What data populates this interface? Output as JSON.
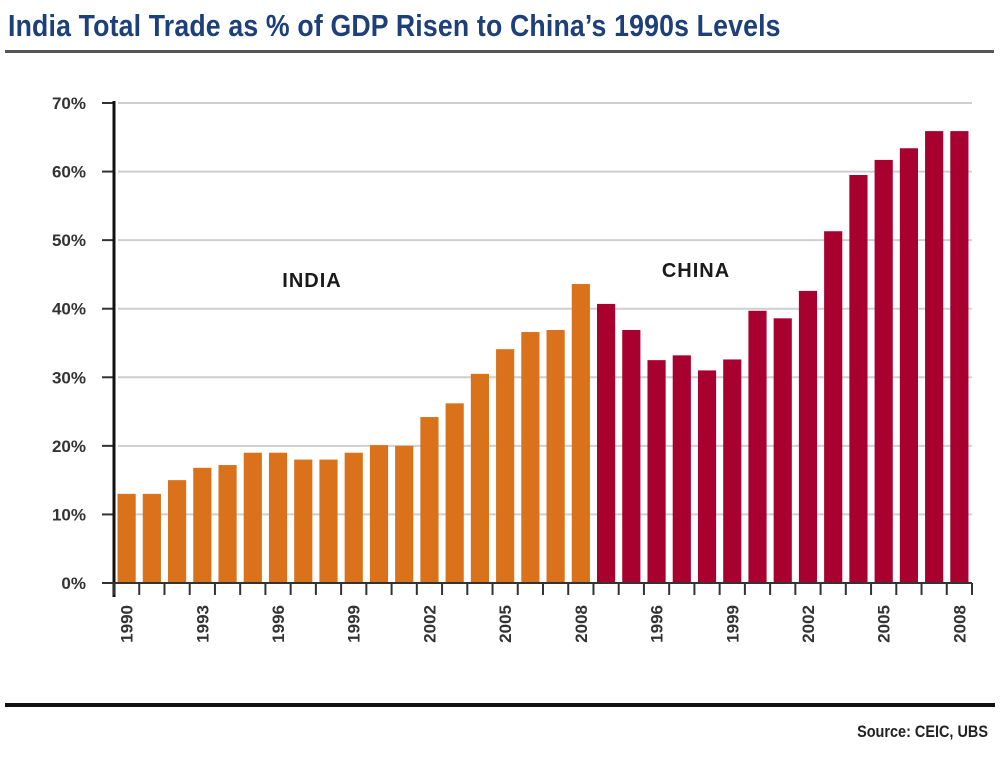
{
  "chart_data": {
    "type": "bar",
    "title": "India Total Trade as % of GDP Risen to China’s 1990s Levels",
    "xlabel": "",
    "ylabel": "",
    "ylim": [
      0,
      70
    ],
    "yticks": [
      "0%",
      "10%",
      "20%",
      "30%",
      "40%",
      "50%",
      "60%",
      "70%"
    ],
    "grid": true,
    "series": [
      {
        "name": "INDIA",
        "color": "#d9721a",
        "categories": [
          "1990",
          "1991",
          "1992",
          "1993",
          "1994",
          "1995",
          "1996",
          "1997",
          "1998",
          "1999",
          "2000",
          "2001",
          "2002",
          "2003",
          "2004",
          "2005",
          "2006",
          "2007",
          "2008"
        ],
        "values": [
          13,
          13,
          15,
          16.8,
          17.2,
          19,
          19,
          18,
          18,
          19,
          20.1,
          20,
          24.2,
          26.2,
          30.5,
          34.1,
          36.6,
          36.9,
          43.6
        ]
      },
      {
        "name": "CHINA",
        "color": "#a8002f",
        "categories": [
          "1994",
          "1995",
          "1996",
          "1997",
          "1998",
          "1999",
          "2000",
          "2001",
          "2002",
          "2003",
          "2004",
          "2005",
          "2006",
          "2007",
          "2008"
        ],
        "values": [
          40.7,
          36.9,
          32.5,
          33.2,
          31,
          32.6,
          39.7,
          38.6,
          42.6,
          51.3,
          59.5,
          61.7,
          63.4,
          65.9,
          65.9
        ]
      }
    ],
    "xtick_labels": [
      {
        "series": 0,
        "category": "1990"
      },
      {
        "series": 0,
        "category": "1993"
      },
      {
        "series": 0,
        "category": "1996"
      },
      {
        "series": 0,
        "category": "1999"
      },
      {
        "series": 0,
        "category": "2002"
      },
      {
        "series": 0,
        "category": "2005"
      },
      {
        "series": 0,
        "category": "2008"
      },
      {
        "series": 1,
        "category": "1996"
      },
      {
        "series": 1,
        "category": "1999"
      },
      {
        "series": 1,
        "category": "2002"
      },
      {
        "series": 1,
        "category": "2005"
      },
      {
        "series": 1,
        "category": "2008"
      }
    ],
    "annotations": [
      "INDIA",
      "CHINA"
    ],
    "source": "Source: CEIC, UBS"
  },
  "header": {
    "title": "India Total Trade as % of GDP Risen to China’s 1990s Levels"
  },
  "footer": {
    "source": "Source: CEIC, UBS"
  }
}
